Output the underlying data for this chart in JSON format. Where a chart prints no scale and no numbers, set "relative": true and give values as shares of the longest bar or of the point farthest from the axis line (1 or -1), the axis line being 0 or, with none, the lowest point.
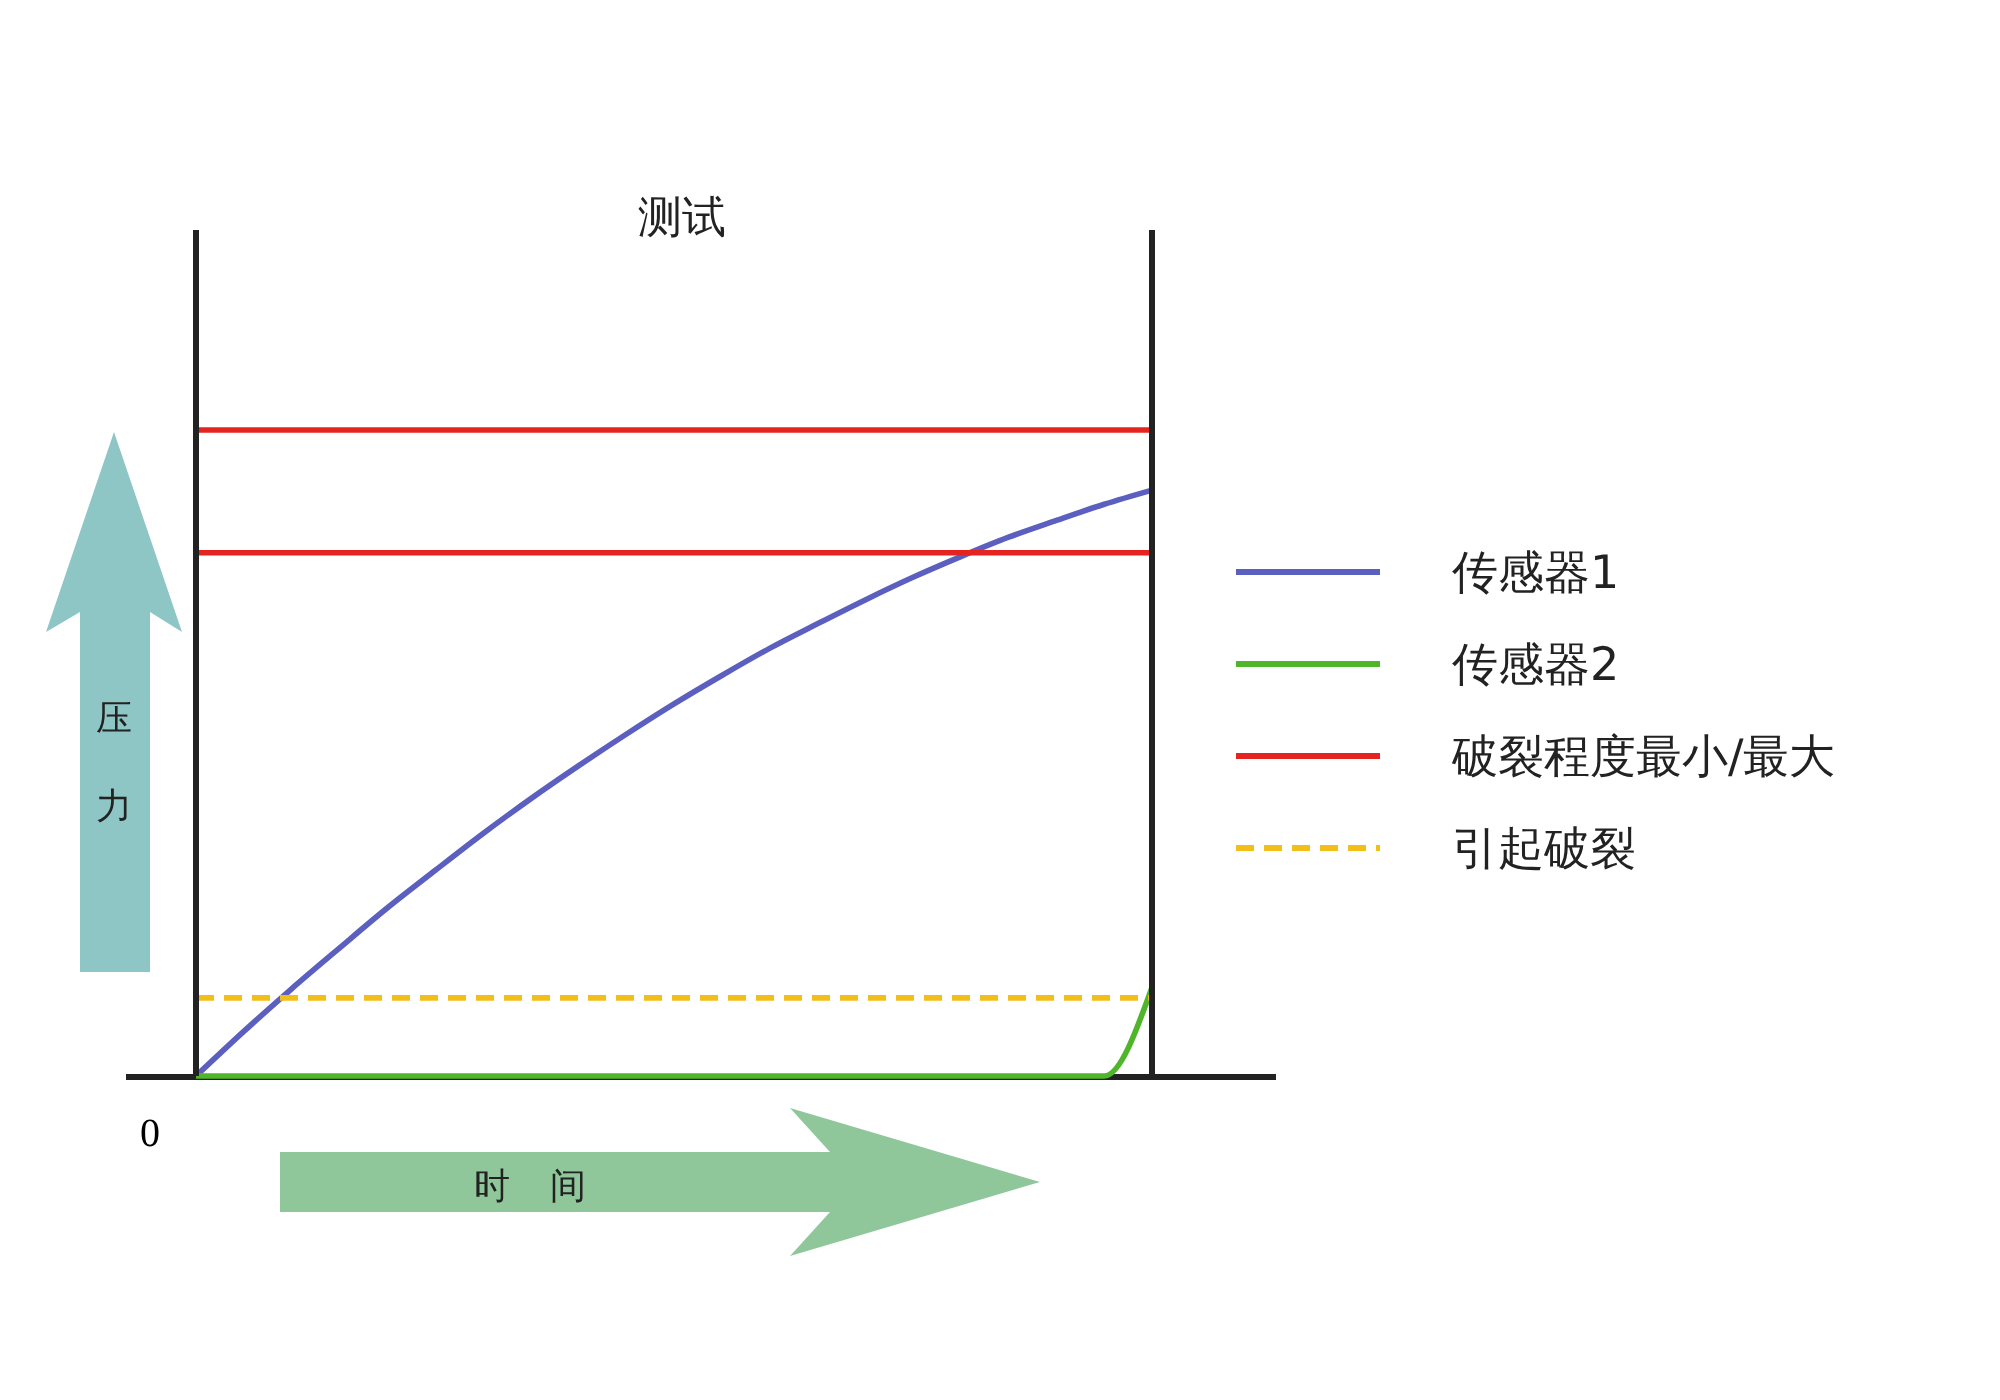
{
  "chart_data": {
    "type": "line",
    "title": "测试",
    "xlabel": "时间",
    "ylabel": "压力",
    "relative": true,
    "legend": "right",
    "grid": false,
    "marker": "none",
    "annotations": [
      "0"
    ],
    "categories": [
      null,
      null,
      null,
      null,
      null,
      null,
      null,
      null,
      null,
      null,
      null,
      null,
      null,
      null,
      null,
      null,
      null,
      null,
      null,
      null,
      null
    ],
    "series": [
      {
        "name": "传感器1",
        "color": "#5b5fbf",
        "values": [
          0,
          0.069,
          0.135,
          0.198,
          0.26,
          0.318,
          0.375,
          0.429,
          0.48,
          0.529,
          0.576,
          0.62,
          0.662,
          0.7,
          0.737,
          0.772,
          0.804,
          0.834,
          0.86,
          0.885,
          0.907
        ]
      },
      {
        "name": "传感器2",
        "color": "#4fb52a",
        "values": [
          0,
          0,
          0,
          0,
          0,
          0,
          0,
          0,
          0,
          0,
          0,
          0,
          0,
          0,
          0,
          0,
          0,
          0,
          0,
          0,
          0.137
        ]
      },
      {
        "name": "破裂程度最小/最大",
        "color": "#e52421",
        "values": [
          0.81,
          0.81,
          0.81,
          0.81,
          0.81,
          0.81,
          0.81,
          0.81,
          0.81,
          0.81,
          0.81,
          0.81,
          0.81,
          0.81,
          0.81,
          0.81,
          0.81,
          0.81,
          0.81,
          0.81,
          0.81
        ]
      },
      {
        "color": "#e52421",
        "values": [
          1,
          1,
          1,
          1,
          1,
          1,
          1,
          1,
          1,
          1,
          1,
          1,
          1,
          1,
          1,
          1,
          1,
          1,
          1,
          1,
          1
        ]
      },
      {
        "name": "引起破裂",
        "color": "#f2be1a",
        "line_style": "dashed",
        "values": [
          0.121,
          0.121,
          0.121,
          0.121,
          0.121,
          0.121,
          0.121,
          0.121,
          0.121,
          0.121,
          0.121,
          0.121,
          0.121,
          0.121,
          0.121,
          0.121,
          0.121,
          0.121,
          0.121,
          0.121,
          0.121
        ]
      }
    ]
  }
}
